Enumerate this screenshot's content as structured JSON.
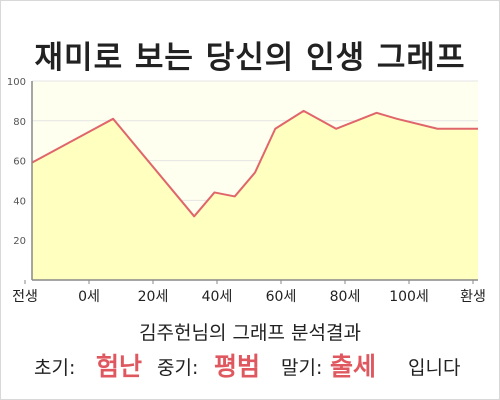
{
  "title": "재미로 보는 당신의 인생 그래프",
  "chart_data": {
    "type": "area",
    "x_labels": [
      "전생",
      "0세",
      "20세",
      "40세",
      "60세",
      "80세",
      "100세",
      "환생"
    ],
    "x": [
      -20,
      0,
      20,
      25,
      30,
      35,
      40,
      47,
      55,
      60,
      65,
      70,
      80,
      90
    ],
    "y": [
      59,
      81,
      32,
      44,
      42,
      54,
      76,
      85,
      76,
      80,
      84,
      81,
      76,
      76
    ],
    "ylim": [
      0,
      100
    ],
    "y_ticks": [
      20,
      40,
      60,
      80,
      100
    ],
    "line_color": "#e0666b",
    "fill_color": "#ffffc0",
    "grid": true
  },
  "result": {
    "title": "김주헌님의 그래프 분석결과",
    "early_label": "초기:",
    "early_value": "험난",
    "middle_label": "중기:",
    "middle_value": "평범",
    "late_label": "말기:",
    "late_value": "출세",
    "ending": "입니다"
  }
}
